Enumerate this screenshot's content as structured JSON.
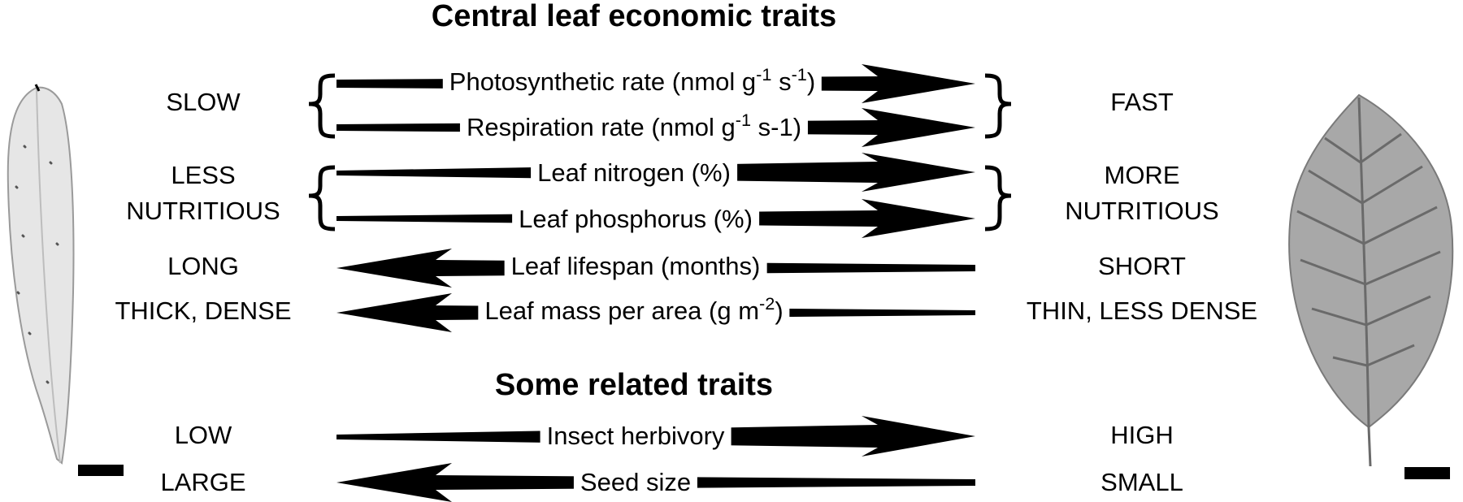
{
  "headings": {
    "central": "Central leaf economic traits",
    "related": "Some related traits"
  },
  "traits": [
    {
      "id": "photosynthetic-rate",
      "label": "Photosynthetic rate (nmol g",
      "sup1": "-1",
      "mid": " s",
      "sup2": "-1",
      "end": ")",
      "direction": "right"
    },
    {
      "id": "respiration-rate",
      "label": "Respiration rate (nmol g",
      "sup1": "-1",
      "mid": " s-1)",
      "direction": "right"
    },
    {
      "id": "leaf-nitrogen",
      "label": "Leaf nitrogen (%)",
      "direction": "right"
    },
    {
      "id": "leaf-phosphorus",
      "label": "Leaf phosphorus (%)",
      "direction": "right"
    },
    {
      "id": "leaf-lifespan",
      "label": "Leaf lifespan (months)",
      "direction": "left"
    },
    {
      "id": "leaf-mass-per-area",
      "label": "Leaf mass per area (g m",
      "sup1": "-2",
      "end": ")",
      "direction": "left"
    },
    {
      "id": "insect-herbivory",
      "label": "Insect herbivory",
      "direction": "right"
    },
    {
      "id": "seed-size",
      "label": "Seed size",
      "direction": "left"
    }
  ],
  "left_poles": {
    "slow": "SLOW",
    "less": "LESS",
    "nutritious": "NUTRITIOUS",
    "long": "LONG",
    "thick": "THICK, DENSE",
    "low": "LOW",
    "large": "LARGE"
  },
  "right_poles": {
    "fast": "FAST",
    "more": "MORE",
    "nutritious": "NUTRITIOUS",
    "short": "SHORT",
    "thin": "THIN, LESS DENSE",
    "high": "HIGH",
    "small": "SMALL"
  },
  "colors": {
    "ink": "#000000",
    "leaf_fill_left": "#e6e6e6",
    "leaf_fill_right": "#a8a8a8",
    "leaf_vein": "#6a6a6a"
  }
}
